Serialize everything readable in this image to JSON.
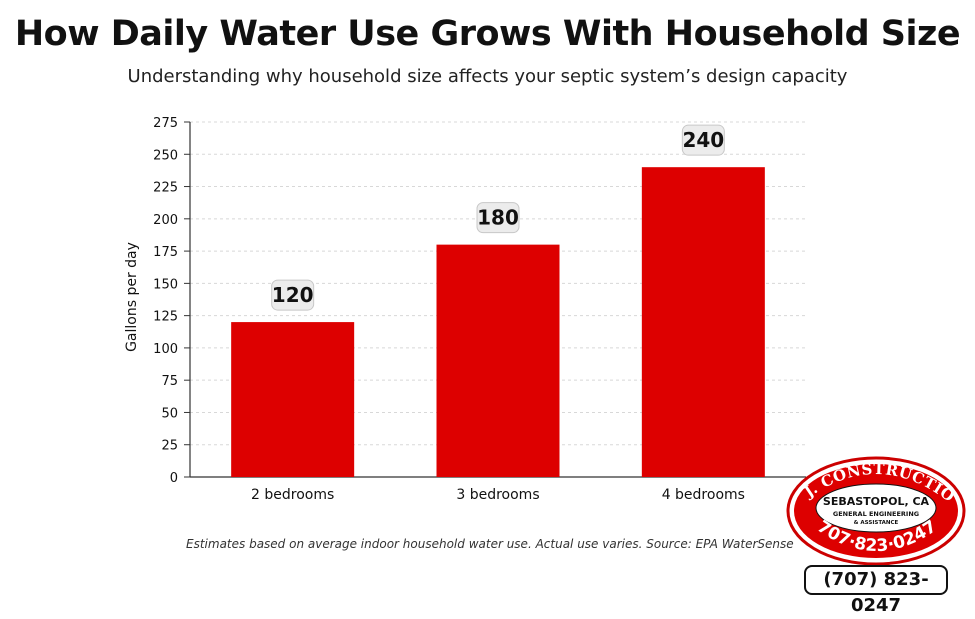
{
  "chart_data": {
    "type": "bar",
    "title": "How Daily Water Use Grows With Household Size",
    "subtitle": "Understanding why household size affects your septic system’s design capacity",
    "xlabel": "",
    "ylabel": "Gallons per day",
    "categories": [
      "2 bedrooms",
      "3 bedrooms",
      "4 bedrooms"
    ],
    "values": [
      120,
      180,
      240
    ],
    "data_labels": [
      "120",
      "180",
      "240"
    ],
    "ylim": [
      0,
      275
    ],
    "yticks": [
      0,
      25,
      50,
      75,
      100,
      125,
      150,
      175,
      200,
      225,
      250,
      275
    ],
    "grid": true,
    "bar_color": "#dd0000"
  },
  "footnote": "Estimates based on average indoor household water use. Actual use varies. Source: EPA WaterSense",
  "logo": {
    "company": "L. J. CONSTRUCTION",
    "location": "SEBASTOPOL, CA",
    "line1": "GENERAL ENGINEERING",
    "line2": "& ASSISTANCE",
    "phone": "707·823·0247",
    "color": "#dd0000"
  },
  "phone_box": "(707) 823-0247"
}
